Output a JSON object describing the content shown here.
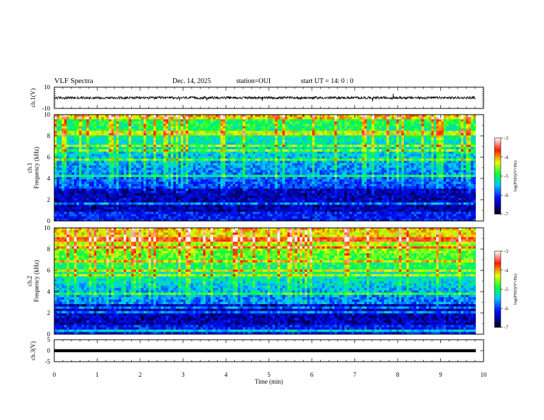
{
  "header": {
    "title": "VLF Spectra",
    "date": "Dec. 14, 2025",
    "station": "station=OUI",
    "start": "start  UT =   14: 0   : 0"
  },
  "chart_data": [
    {
      "type": "line",
      "name": "ch1-waveform",
      "ylabel": "ch.1(V)",
      "ylim": [
        -10,
        10
      ],
      "yticks": [
        "10",
        "-10"
      ],
      "xlim": [
        0,
        10
      ],
      "description_values": {
        "baseline": 0,
        "noise_amplitude": 1.2
      }
    },
    {
      "type": "heatmap",
      "name": "ch1-spectrogram",
      "ylabel_line1": "ch.1",
      "ylabel_line2": "Frequency  (kHz)",
      "ylim": [
        0,
        10
      ],
      "yticks": [
        "0",
        "2",
        "4",
        "6",
        "8",
        "10"
      ],
      "xlim": [
        0,
        10
      ],
      "colorbar": {
        "label": "log(PSD)(V²/Hz)",
        "range": [
          -7,
          -3
        ],
        "ticks": [
          "-3",
          "-4",
          "-5",
          "-6",
          "-7"
        ]
      }
    },
    {
      "type": "heatmap",
      "name": "ch2-spectrogram",
      "ylabel_line1": "ch.2",
      "ylabel_line2": "Frequency  (kHz)",
      "ylim": [
        0,
        10
      ],
      "yticks": [
        "0",
        "2",
        "4",
        "6",
        "8",
        "10"
      ],
      "xlim": [
        0,
        10
      ],
      "colorbar": {
        "label": "log(PSD)(V²/Hz)",
        "range": [
          -7,
          -3
        ],
        "ticks": [
          "-3",
          "-4",
          "-5",
          "-6",
          "-7"
        ]
      }
    },
    {
      "type": "line",
      "name": "ch3-waveform",
      "ylabel": "ch.3(V)",
      "ylim": [
        -5,
        5
      ],
      "yticks": [
        "5",
        "0",
        "-5"
      ],
      "xlim": [
        0,
        10
      ],
      "description_values": {
        "baseline": 0
      }
    }
  ],
  "xaxis": {
    "label": "Time  (min)",
    "ticks": [
      "0",
      "1",
      "2",
      "3",
      "4",
      "5",
      "6",
      "7",
      "8",
      "9",
      "10"
    ],
    "range": [
      0,
      10
    ],
    "data_end": 9.82
  }
}
